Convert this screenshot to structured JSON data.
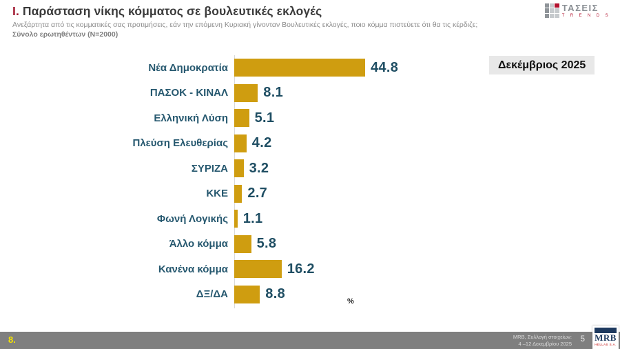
{
  "header": {
    "title_prefix": "Ι.",
    "title": " Παράσταση νίκης κόμματος σε βουλευτικές εκλογές",
    "subtitle": "Ανεξάρτητα από τις κομματικές σας προτιμήσεις, εάν την επόμενη Κυριακή γίνονταν Βουλευτικές εκλογές, ποιο κόμμα πιστεύετε ότι θα τις κέρδιζε;",
    "sample": "Σύνολο ερωτηθέντων (N=2000)"
  },
  "taseis_logo": {
    "name": "ΤΑΣΕΙΣ",
    "sub": "T R E N D S"
  },
  "period_label": "Δεκέμβριος 2025",
  "chart_data": {
    "type": "bar",
    "orientation": "horizontal",
    "title": "Παράσταση νίκης κόμματος σε βουλευτικές εκλογές",
    "categories": [
      "Νέα Δημοκρατία",
      "ΠΑΣΟΚ - ΚΙΝΑΛ",
      "Ελληνική Λύση",
      "Πλεύση Ελευθερίας",
      "ΣΥΡΙΖΑ",
      "ΚΚΕ",
      "Φωνή Λογικής",
      "Άλλο κόμμα",
      "Κανένα κόμμα",
      "ΔΞ/ΔΑ"
    ],
    "values": [
      44.8,
      8.1,
      5.1,
      4.2,
      3.2,
      2.7,
      1.1,
      5.8,
      16.2,
      8.8
    ],
    "unit": "%",
    "xlim": [
      0,
      50
    ],
    "grid": false,
    "legend": false,
    "bar_color": "#CF9D10",
    "label_color": "#26586F",
    "value_color": "#1F4E63"
  },
  "colors": {
    "title_accent": "#A21C33",
    "title_text": "#3B3B3B",
    "footer_bg": "#7F7F7F",
    "footer_page_yellow": "#F4E300"
  },
  "footer": {
    "page_left": "8.",
    "source_line1": "MRB, Συλλογή στοιχείων:",
    "source_line2": "4 –12 Δεκεμβρίου 2025",
    "page_right": "5",
    "mrb_logo": {
      "name": "MRB",
      "sub": "HELLAS S.A."
    }
  }
}
